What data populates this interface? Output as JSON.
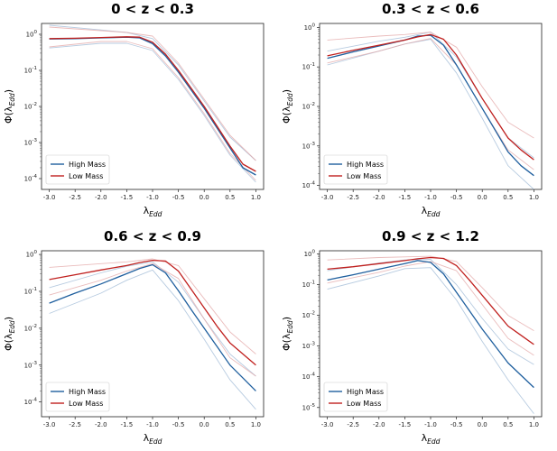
{
  "colors": {
    "high": "#1f5f9e",
    "low": "#c0201e",
    "high_light": "#9fb9d6",
    "low_light": "#e3a6a6"
  },
  "chart_data": [
    {
      "type": "line",
      "title": "0 < z < 0.3",
      "xlabel_base": "λ",
      "xlabel_sub": "Edd",
      "ylabel_base": "Φ(λ",
      "ylabel_sub": "Edd",
      "ylabel_end": ")",
      "xlim": [
        -3.15,
        1.15
      ],
      "ylim_log10": [
        -4.3,
        0.3
      ],
      "xticks": [
        -3.0,
        -2.5,
        -2.0,
        -1.5,
        -1.0,
        -0.5,
        0.0,
        0.5,
        1.0
      ],
      "yticks_exp": [
        0,
        -1,
        -2,
        -3,
        -4
      ],
      "legend": [
        "High Mass",
        "Low Mass"
      ],
      "series": [
        {
          "name": "High Mass",
          "x": [
            -3.0,
            -2.5,
            -2.0,
            -1.5,
            -1.25,
            -1.0,
            -0.75,
            -0.5,
            -0.25,
            0.0,
            0.25,
            0.5,
            0.75,
            1.0
          ],
          "log10y": [
            -0.13,
            -0.12,
            -0.1,
            -0.08,
            -0.1,
            -0.26,
            -0.6,
            -1.05,
            -1.55,
            -2.05,
            -2.6,
            -3.15,
            -3.7,
            -3.9
          ]
        },
        {
          "name": "Low Mass",
          "x": [
            -3.0,
            -2.5,
            -2.0,
            -1.5,
            -1.25,
            -1.0,
            -0.75,
            -0.5,
            -0.25,
            0.0,
            0.25,
            0.5,
            0.75,
            1.0
          ],
          "log10y": [
            -0.12,
            -0.11,
            -0.09,
            -0.07,
            -0.08,
            -0.22,
            -0.55,
            -1.0,
            -1.5,
            -2.0,
            -2.55,
            -3.1,
            -3.6,
            -3.8
          ]
        },
        {
          "name": "High Mass band upper",
          "x": [
            -3.0,
            -2.0,
            -1.5,
            -1.0,
            -0.5,
            0.0,
            0.5,
            1.0
          ],
          "log10y": [
            0.25,
            0.12,
            0.05,
            -0.12,
            -0.85,
            -1.85,
            -2.85,
            -3.5
          ]
        },
        {
          "name": "High Mass band lower",
          "x": [
            -3.0,
            -2.0,
            -1.5,
            -1.0,
            -0.5,
            0.0,
            0.5,
            1.0
          ],
          "log10y": [
            -0.38,
            -0.25,
            -0.25,
            -0.45,
            -1.25,
            -2.25,
            -3.35,
            -4.1
          ]
        },
        {
          "name": "Low Mass band upper",
          "x": [
            -3.0,
            -2.0,
            -1.5,
            -1.0,
            -0.5,
            0.0,
            0.5,
            1.0
          ],
          "log10y": [
            0.2,
            0.1,
            0.05,
            -0.05,
            -0.8,
            -1.8,
            -2.8,
            -3.5
          ]
        },
        {
          "name": "Low Mass band lower",
          "x": [
            -3.0,
            -2.0,
            -1.5,
            -1.0,
            -0.5,
            0.0,
            0.5,
            1.0
          ],
          "log10y": [
            -0.35,
            -0.2,
            -0.2,
            -0.4,
            -1.2,
            -2.2,
            -3.3,
            -4.05
          ]
        }
      ]
    },
    {
      "type": "line",
      "title": "0.3 < z < 0.6",
      "xlabel_base": "λ",
      "xlabel_sub": "Edd",
      "ylabel_base": "Φ(λ",
      "ylabel_sub": "Edd",
      "ylabel_end": ")",
      "xlim": [
        -3.15,
        1.15
      ],
      "ylim_log10": [
        -4.1,
        0.1
      ],
      "xticks": [
        -3.0,
        -2.5,
        -2.0,
        -1.5,
        -1.0,
        -0.5,
        0.0,
        0.5,
        1.0
      ],
      "yticks_exp": [
        0,
        -1,
        -2,
        -3,
        -4
      ],
      "legend": [
        "High Mass",
        "Low Mass"
      ],
      "series": [
        {
          "name": "High Mass",
          "x": [
            -3.0,
            -2.5,
            -2.0,
            -1.5,
            -1.25,
            -1.0,
            -0.75,
            -0.5,
            -0.25,
            0.0,
            0.25,
            0.5,
            0.75,
            1.0
          ],
          "log10y": [
            -0.78,
            -0.62,
            -0.47,
            -0.32,
            -0.22,
            -0.2,
            -0.45,
            -0.95,
            -1.5,
            -2.05,
            -2.6,
            -3.15,
            -3.5,
            -3.75
          ]
        },
        {
          "name": "Low Mass",
          "x": [
            -3.0,
            -2.5,
            -2.0,
            -1.5,
            -1.25,
            -1.0,
            -0.75,
            -0.5,
            -0.25,
            0.0,
            0.25,
            0.5,
            0.75,
            1.0
          ],
          "log10y": [
            -0.72,
            -0.58,
            -0.45,
            -0.32,
            -0.24,
            -0.18,
            -0.3,
            -0.7,
            -1.25,
            -1.8,
            -2.3,
            -2.8,
            -3.1,
            -3.35
          ]
        },
        {
          "name": "High Mass band upper",
          "x": [
            -3.0,
            -2.0,
            -1.5,
            -1.0,
            -0.5,
            0.0,
            0.5,
            1.0
          ],
          "log10y": [
            -0.6,
            -0.35,
            -0.25,
            -0.12,
            -0.75,
            -1.8,
            -2.8,
            -3.3
          ]
        },
        {
          "name": "High Mass band lower",
          "x": [
            -3.0,
            -2.0,
            -1.5,
            -1.0,
            -0.5,
            0.0,
            0.5,
            1.0
          ],
          "log10y": [
            -0.95,
            -0.6,
            -0.42,
            -0.3,
            -1.15,
            -2.3,
            -3.5,
            -4.1
          ]
        },
        {
          "name": "Low Mass band upper",
          "x": [
            -3.0,
            -2.0,
            -1.5,
            -1.0,
            -0.5,
            0.0,
            0.5,
            1.0
          ],
          "log10y": [
            -0.32,
            -0.22,
            -0.18,
            -0.12,
            -0.5,
            -1.5,
            -2.4,
            -2.8
          ]
        },
        {
          "name": "Low Mass band lower",
          "x": [
            -3.0,
            -2.0,
            -1.5,
            -1.0,
            -0.5,
            0.0,
            0.5,
            1.0
          ],
          "log10y": [
            -0.9,
            -0.6,
            -0.42,
            -0.28,
            -0.95,
            -2.05,
            -3.1,
            -3.6
          ]
        }
      ]
    },
    {
      "type": "line",
      "title": "0.6 < z < 0.9",
      "xlabel_base": "λ",
      "xlabel_sub": "Edd",
      "ylabel_base": "Φ(λ",
      "ylabel_sub": "Edd",
      "ylabel_end": ")",
      "xlim": [
        -3.15,
        1.15
      ],
      "ylim_log10": [
        -4.4,
        0.1
      ],
      "xticks": [
        -3.0,
        -2.5,
        -2.0,
        -1.5,
        -1.0,
        -0.5,
        0.0,
        0.5,
        1.0
      ],
      "yticks_exp": [
        0,
        -1,
        -2,
        -3,
        -4
      ],
      "legend": [
        "High Mass",
        "Low Mass"
      ],
      "series": [
        {
          "name": "High Mass",
          "x": [
            -3.0,
            -2.5,
            -2.0,
            -1.5,
            -1.25,
            -1.0,
            -0.75,
            -0.5,
            -0.25,
            0.0,
            0.25,
            0.5,
            0.75,
            1.0
          ],
          "log10y": [
            -1.32,
            -1.05,
            -0.8,
            -0.52,
            -0.38,
            -0.28,
            -0.5,
            -0.98,
            -1.5,
            -2.0,
            -2.5,
            -3.0,
            -3.35,
            -3.7
          ]
        },
        {
          "name": "Low Mass",
          "x": [
            -3.0,
            -2.5,
            -2.0,
            -1.5,
            -1.25,
            -1.0,
            -0.75,
            -0.5,
            -0.25,
            0.0,
            0.25,
            0.5,
            0.75,
            1.0
          ],
          "log10y": [
            -0.68,
            -0.55,
            -0.42,
            -0.3,
            -0.22,
            -0.16,
            -0.18,
            -0.45,
            -0.95,
            -1.45,
            -1.95,
            -2.4,
            -2.7,
            -3.0
          ]
        },
        {
          "name": "High Mass band upper",
          "x": [
            -3.0,
            -2.0,
            -1.5,
            -1.0,
            -0.5,
            0.0,
            0.5,
            1.0
          ],
          "log10y": [
            -0.9,
            -0.5,
            -0.32,
            -0.2,
            -0.75,
            -1.75,
            -2.7,
            -3.3
          ]
        },
        {
          "name": "High Mass band lower",
          "x": [
            -3.0,
            -2.0,
            -1.5,
            -1.0,
            -0.5,
            0.0,
            0.5,
            1.0
          ],
          "log10y": [
            -1.6,
            -1.05,
            -0.7,
            -0.42,
            -1.25,
            -2.3,
            -3.4,
            -4.2
          ]
        },
        {
          "name": "Low Mass band upper",
          "x": [
            -3.0,
            -2.0,
            -1.5,
            -1.0,
            -0.5,
            0.0,
            0.5,
            1.0
          ],
          "log10y": [
            -0.35,
            -0.25,
            -0.2,
            -0.12,
            -0.3,
            -1.2,
            -2.1,
            -2.7
          ]
        },
        {
          "name": "Low Mass band lower",
          "x": [
            -3.0,
            -2.0,
            -1.5,
            -1.0,
            -0.5,
            0.0,
            0.5,
            1.0
          ],
          "log10y": [
            -1.1,
            -0.7,
            -0.45,
            -0.25,
            -0.65,
            -1.75,
            -2.8,
            -3.3
          ]
        }
      ]
    },
    {
      "type": "line",
      "title": "0.9 < z < 1.2",
      "xlabel_base": "λ",
      "xlabel_sub": "Edd",
      "ylabel_base": "Φ(λ",
      "ylabel_sub": "Edd",
      "ylabel_end": ")",
      "xlim": [
        -3.15,
        1.15
      ],
      "ylim_log10": [
        -5.3,
        0.1
      ],
      "xticks": [
        -3.0,
        -2.5,
        -2.0,
        -1.5,
        -1.0,
        -0.5,
        0.0,
        0.5,
        1.0
      ],
      "yticks_exp": [
        0,
        -1,
        -2,
        -3,
        -4,
        -5
      ],
      "legend": [
        "High Mass",
        "Low Mass"
      ],
      "series": [
        {
          "name": "High Mass",
          "x": [
            -3.0,
            -2.5,
            -2.0,
            -1.5,
            -1.25,
            -1.0,
            -0.75,
            -0.5,
            -0.25,
            0.0,
            0.25,
            0.5,
            0.75,
            1.0
          ],
          "log10y": [
            -0.85,
            -0.68,
            -0.5,
            -0.32,
            -0.22,
            -0.28,
            -0.65,
            -1.25,
            -1.85,
            -2.45,
            -3.0,
            -3.55,
            -3.95,
            -4.35
          ]
        },
        {
          "name": "Low Mass",
          "x": [
            -3.0,
            -2.5,
            -2.0,
            -1.5,
            -1.25,
            -1.0,
            -0.75,
            -0.5,
            -0.25,
            0.0,
            0.25,
            0.5,
            0.75,
            1.0
          ],
          "log10y": [
            -0.5,
            -0.42,
            -0.32,
            -0.22,
            -0.16,
            -0.12,
            -0.15,
            -0.38,
            -0.85,
            -1.35,
            -1.85,
            -2.35,
            -2.65,
            -2.95
          ]
        },
        {
          "name": "High Mass band upper",
          "x": [
            -3.0,
            -2.0,
            -1.5,
            -1.0,
            -0.5,
            0.0,
            0.5,
            1.0
          ],
          "log10y": [
            -0.55,
            -0.3,
            -0.2,
            -0.18,
            -1.0,
            -2.1,
            -3.1,
            -3.6
          ]
        },
        {
          "name": "High Mass band lower",
          "x": [
            -3.0,
            -2.0,
            -1.5,
            -1.0,
            -0.5,
            0.0,
            0.5,
            1.0
          ],
          "log10y": [
            -1.15,
            -0.72,
            -0.48,
            -0.45,
            -1.5,
            -2.85,
            -4.1,
            -5.2
          ]
        },
        {
          "name": "Low Mass band upper",
          "x": [
            -3.0,
            -2.0,
            -1.5,
            -1.0,
            -0.5,
            0.0,
            0.5,
            1.0
          ],
          "log10y": [
            -0.2,
            -0.12,
            -0.1,
            -0.08,
            -0.25,
            -1.1,
            -2.0,
            -2.5
          ]
        },
        {
          "name": "Low Mass band lower",
          "x": [
            -3.0,
            -2.0,
            -1.5,
            -1.0,
            -0.5,
            0.0,
            0.5,
            1.0
          ],
          "log10y": [
            -0.95,
            -0.6,
            -0.4,
            -0.25,
            -0.55,
            -1.65,
            -2.75,
            -3.3
          ]
        }
      ]
    }
  ]
}
